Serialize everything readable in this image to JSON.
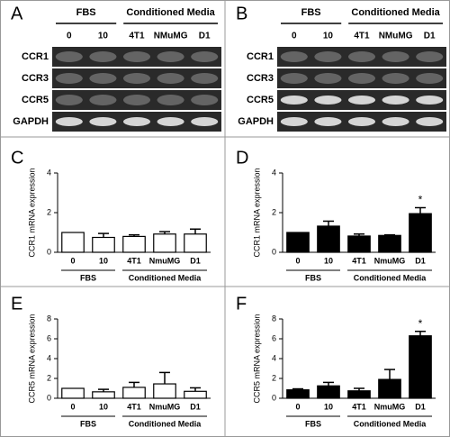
{
  "gels": [
    {
      "panel": "A",
      "groups": [
        "FBS",
        "Conditioned Media"
      ],
      "lanes": [
        "0",
        "10",
        "4T1",
        "NMuMG",
        "D1"
      ],
      "rows": [
        "CCR1",
        "CCR3",
        "CCR5",
        "GAPDH"
      ]
    },
    {
      "panel": "B",
      "groups": [
        "FBS",
        "Conditioned Media"
      ],
      "lanes": [
        "0",
        "10",
        "4T1",
        "NMuMG",
        "D1"
      ],
      "rows": [
        "CCR1",
        "CCR3",
        "CCR5",
        "GAPDH"
      ]
    }
  ],
  "chart_data": [
    {
      "type": "bar",
      "panel": "C",
      "y_label": "CCR1 mRNA expression",
      "group_labels": [
        "FBS",
        "Conditioned Media"
      ],
      "categories": [
        "0",
        "10",
        "4T1",
        "NmuMG",
        "D1"
      ],
      "values": [
        1.0,
        0.75,
        0.8,
        0.92,
        0.92
      ],
      "errors": [
        null,
        0.2,
        0.08,
        0.12,
        0.25
      ],
      "color": "#ffffff",
      "ylim": [
        0,
        4
      ],
      "yticks": [
        0,
        2,
        4
      ]
    },
    {
      "type": "bar",
      "panel": "D",
      "y_label": "CCR1 mRNA expression",
      "group_labels": [
        "FBS",
        "Conditioned Media"
      ],
      "categories": [
        "0",
        "10",
        "4T1",
        "NmuMG",
        "D1"
      ],
      "values": [
        1.0,
        1.32,
        0.82,
        0.85,
        1.95
      ],
      "errors": [
        null,
        0.25,
        0.1,
        0.03,
        0.3
      ],
      "significance": [
        null,
        null,
        null,
        null,
        "*"
      ],
      "color": "#000000",
      "ylim": [
        0,
        4
      ],
      "yticks": [
        0,
        2,
        4
      ]
    },
    {
      "type": "bar",
      "panel": "E",
      "y_label": "CCR5 mRNA expression",
      "group_labels": [
        "FBS",
        "Conditioned Media"
      ],
      "categories": [
        "0",
        "10",
        "4T1",
        "NmuMG",
        "D1"
      ],
      "values": [
        1.0,
        0.65,
        1.1,
        1.45,
        0.7
      ],
      "errors": [
        null,
        0.25,
        0.5,
        1.15,
        0.35
      ],
      "color": "#ffffff",
      "ylim": [
        0,
        8
      ],
      "yticks": [
        0,
        2,
        4,
        6,
        8
      ]
    },
    {
      "type": "bar",
      "panel": "F",
      "y_label": "CCR5 mRNA expression",
      "group_labels": [
        "FBS",
        "Conditioned Media"
      ],
      "categories": [
        "0",
        "10",
        "4T1",
        "NmuMG",
        "D1"
      ],
      "values": [
        0.85,
        1.25,
        0.75,
        1.9,
        6.3
      ],
      "errors": [
        0.1,
        0.35,
        0.25,
        1.0,
        0.45
      ],
      "significance": [
        null,
        null,
        null,
        null,
        "*"
      ],
      "color": "#000000",
      "ylim": [
        0,
        8
      ],
      "yticks": [
        0,
        2,
        4,
        6,
        8
      ]
    }
  ]
}
